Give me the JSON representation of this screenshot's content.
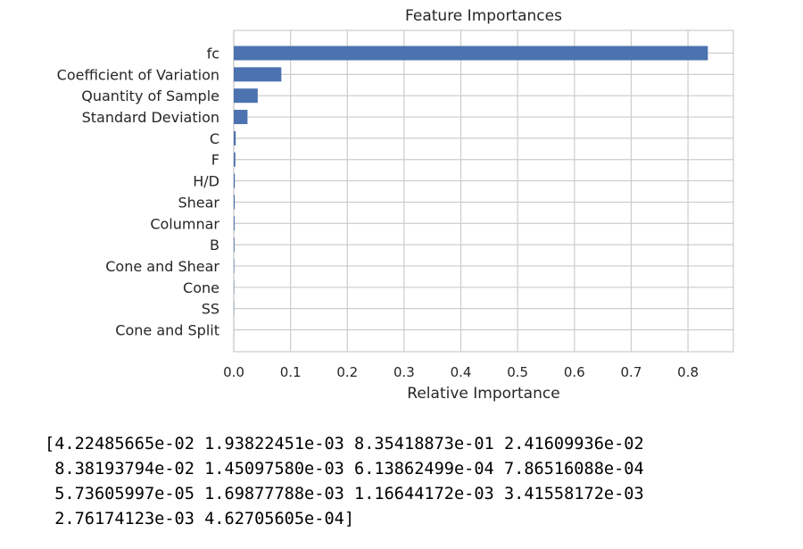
{
  "chart_data": {
    "type": "bar",
    "orientation": "horizontal",
    "title": "Feature Importances",
    "xlabel": "Relative Importance",
    "ylabel": "",
    "xlim": [
      0.0,
      0.88
    ],
    "xticks": [
      "0.0",
      "0.1",
      "0.2",
      "0.3",
      "0.4",
      "0.5",
      "0.6",
      "0.7",
      "0.8"
    ],
    "xtick_values": [
      0.0,
      0.1,
      0.2,
      0.3,
      0.4,
      0.5,
      0.6,
      0.7,
      0.8
    ],
    "grid": true,
    "bar_color": "#4c72b0",
    "categories": [
      "fc",
      "Coefficient of Variation",
      "Quantity of Sample",
      "Standard Deviation",
      "C",
      "F",
      "H/D",
      "Shear",
      "Columnar",
      "B",
      "Cone and Shear",
      "Cone",
      "SS",
      "Cone and Split"
    ],
    "values": [
      0.835,
      0.0838,
      0.0422,
      0.0242,
      0.0034,
      0.0028,
      0.0019,
      0.0017,
      0.0015,
      0.0012,
      0.0008,
      0.0006,
      0.0005,
      0.0001
    ]
  },
  "output": {
    "text": "[4.22485665e-02 1.93822451e-03 8.35418873e-01 2.41609936e-02\n 8.38193794e-02 1.45097580e-03 6.13862499e-04 7.86516088e-04\n 5.73605997e-05 1.69877788e-03 1.16644172e-03 3.41558172e-03\n 2.76174123e-03 4.62705605e-04]"
  }
}
